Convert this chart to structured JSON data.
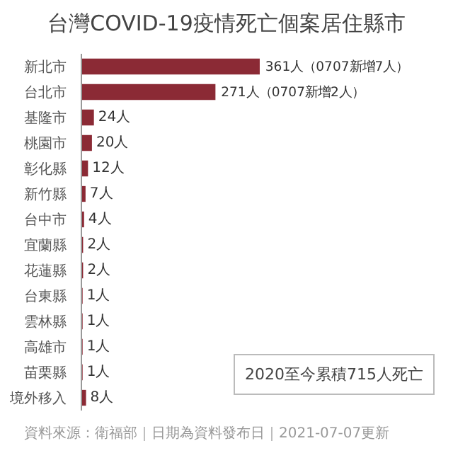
{
  "chart_data": {
    "type": "bar",
    "orientation": "horizontal",
    "title": "台灣COVID-19疫情死亡個案居住縣市",
    "categories": [
      "新北市",
      "台北市",
      "基隆市",
      "桃園市",
      "彰化縣",
      "新竹縣",
      "台中市",
      "宜蘭縣",
      "花蓮縣",
      "台東縣",
      "雲林縣",
      "高雄市",
      "苗栗縣",
      "境外移入"
    ],
    "values": [
      361,
      271,
      24,
      20,
      12,
      7,
      4,
      2,
      2,
      1,
      1,
      1,
      1,
      8
    ],
    "value_labels": [
      "361人（0707新增7人）",
      "271人（0707新增2人）",
      "24人",
      "20人",
      "12人",
      "7人",
      "4人",
      "2人",
      "2人",
      "1人",
      "1人",
      "1人",
      "1人",
      "8人"
    ],
    "color": "#8b2a35",
    "tick_labels": "y",
    "annotations": [
      "2020至今累積715人死亡",
      "資料來源：衛福部｜日期為資料發布日｜2021-07-07更新"
    ]
  }
}
